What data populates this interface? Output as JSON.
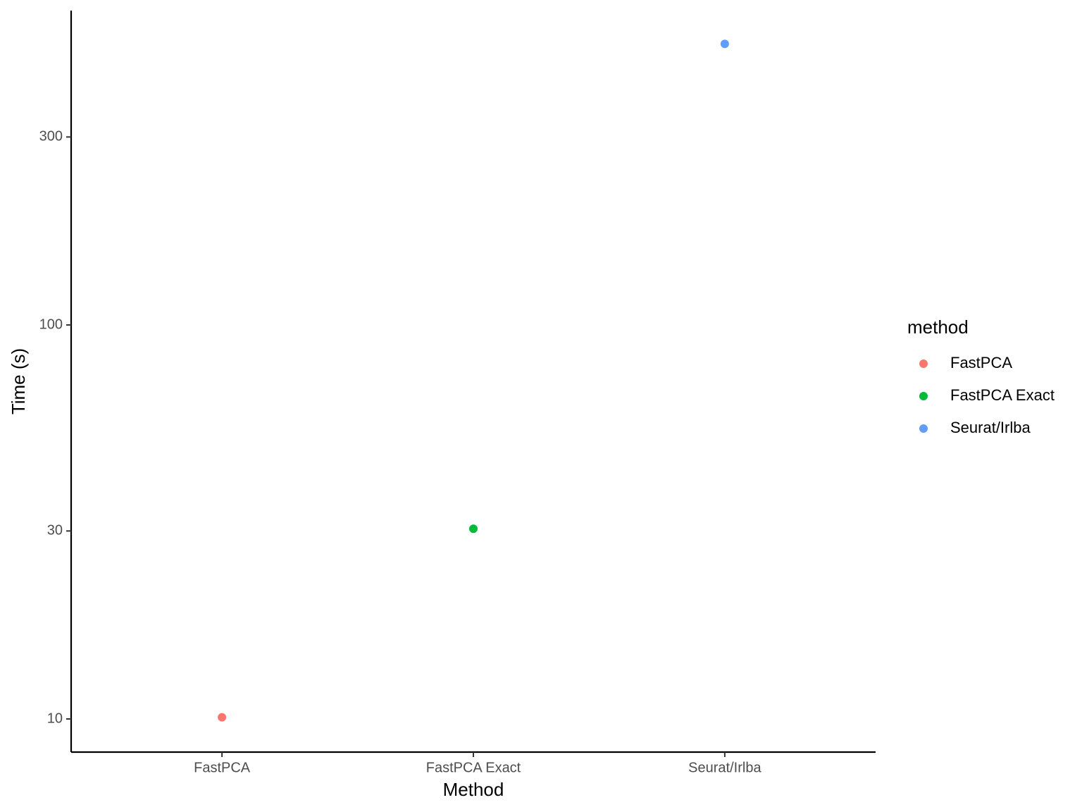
{
  "chart_data": {
    "type": "scatter",
    "x_label": "Method",
    "y_label": "Time (s)",
    "legend_title": "method",
    "categories": [
      "FastPCA",
      "FastPCA Exact",
      "Seurat/Irlba"
    ],
    "series": [
      {
        "name": "FastPCA",
        "color": "#f8766d",
        "values": [
          10.1,
          null,
          null
        ]
      },
      {
        "name": "FastPCA Exact",
        "color": "#00ba38",
        "values": [
          null,
          30.4,
          null
        ]
      },
      {
        "name": "Seurat/Irlba",
        "color": "#619cff",
        "values": [
          null,
          null,
          517
        ]
      }
    ],
    "ylim": [
      8.24,
      628
    ],
    "yticks": [
      10,
      30,
      100,
      300
    ],
    "log_y": true,
    "grid": false,
    "legend": "right"
  }
}
